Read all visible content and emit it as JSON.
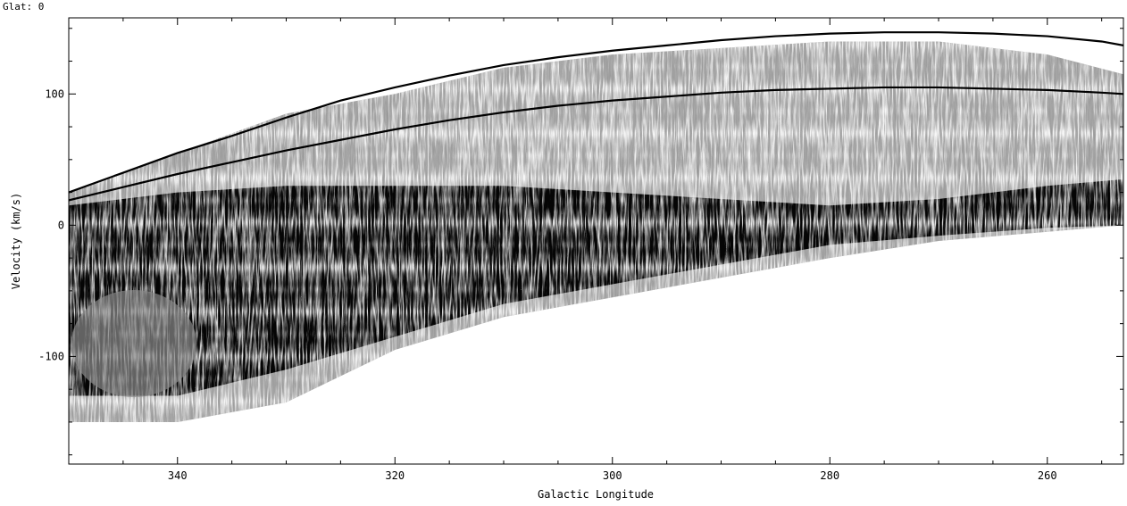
{
  "header": {
    "glat_label": "Glat: 0"
  },
  "chart_data": {
    "type": "heatmap",
    "title": "",
    "xlabel": "Galactic Longitude",
    "ylabel": "Velocity (km/s)",
    "xlim": [
      350,
      253
    ],
    "ylim": [
      -182,
      158
    ],
    "x_ticks": [
      340,
      320,
      300,
      280,
      260
    ],
    "y_ticks": [
      100,
      0,
      -100
    ],
    "grid": false,
    "colormap": "grayscale (white = low intensity, black = high intensity)",
    "emission_envelope": {
      "longitude": [
        350,
        340,
        330,
        320,
        310,
        300,
        290,
        280,
        270,
        260,
        253
      ],
      "upper_velocity": [
        25,
        55,
        85,
        100,
        120,
        130,
        135,
        140,
        140,
        130,
        115
      ],
      "lower_velocity": [
        -150,
        -150,
        -135,
        -95,
        -70,
        -55,
        -40,
        -25,
        -12,
        -5,
        0
      ],
      "dense_core_upper": [
        15,
        25,
        30,
        30,
        30,
        25,
        20,
        15,
        20,
        30,
        35
      ],
      "dense_core_lower": [
        -130,
        -130,
        -110,
        -85,
        -60,
        -45,
        -30,
        -15,
        -8,
        -2,
        0
      ]
    },
    "series": [
      {
        "x": [
          350,
          345,
          340,
          335,
          330,
          325,
          320,
          315,
          310,
          305,
          300,
          295,
          290,
          285,
          280,
          275,
          270,
          265,
          260,
          255,
          253
        ],
        "y": [
          25,
          40,
          55,
          68,
          82,
          95,
          105,
          114,
          122,
          128,
          133,
          137,
          141,
          144,
          146,
          147,
          147,
          146,
          144,
          140,
          137
        ]
      },
      {
        "x": [
          350,
          345,
          340,
          335,
          330,
          325,
          320,
          315,
          310,
          305,
          300,
          295,
          290,
          285,
          280,
          275,
          270,
          265,
          260,
          255,
          253
        ],
        "y": [
          19,
          29,
          39,
          48,
          57,
          65,
          73,
          80,
          86,
          91,
          95,
          98,
          101,
          103,
          104,
          105,
          105,
          104,
          103,
          101,
          100
        ]
      }
    ]
  }
}
